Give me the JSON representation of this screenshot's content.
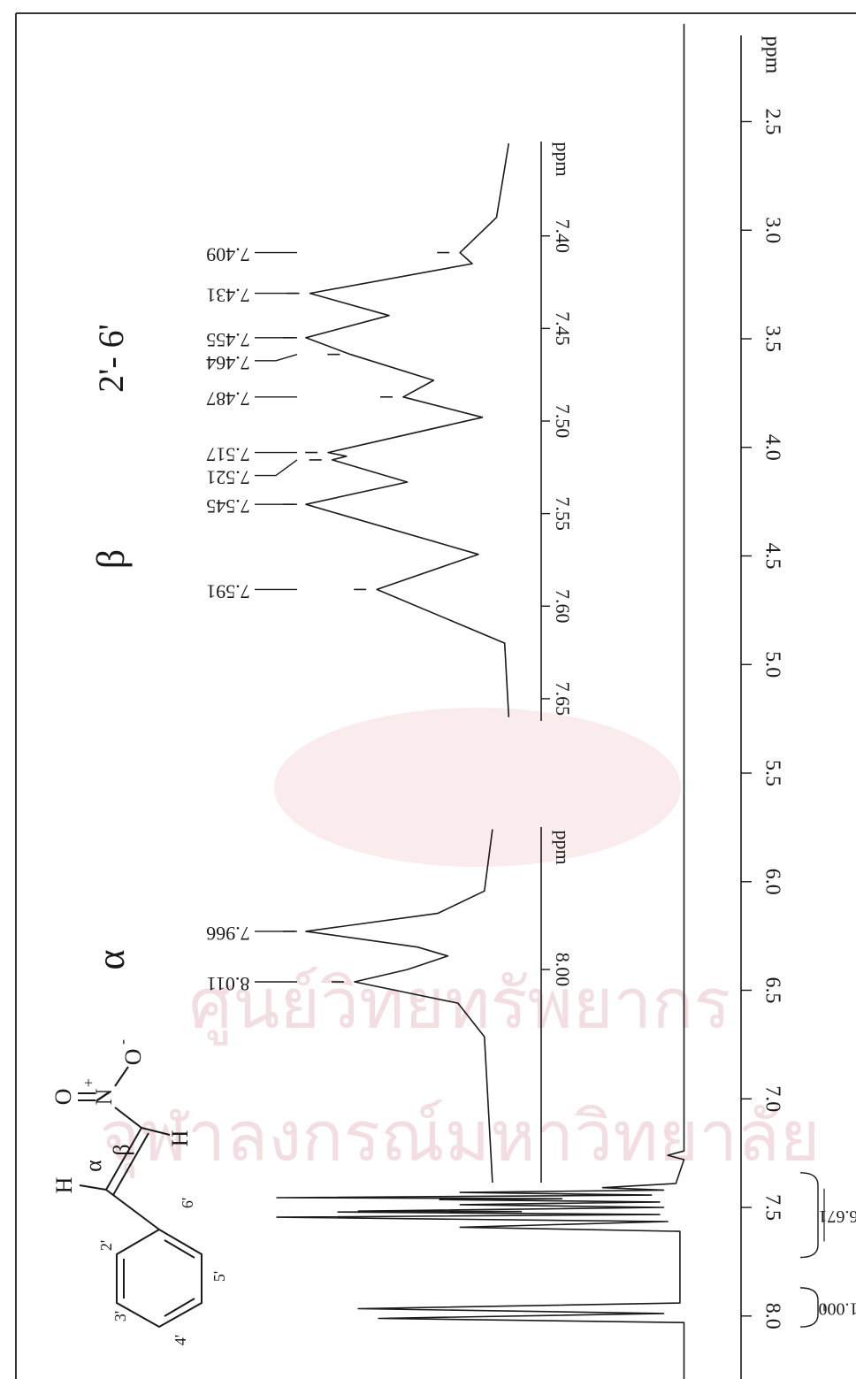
{
  "chart_data": [
    {
      "type": "line",
      "color": "#1a1a1a",
      "xlabel": "ppm",
      "xlim": [
        1.94,
        8.29
      ],
      "xticks": [
        2.5,
        {
          "value": 3,
          "label": "3.0"
        },
        3.5,
        {
          "value": 4,
          "label": "4.0"
        },
        4.5,
        {
          "value": 5,
          "label": "5.0"
        },
        5.5,
        {
          "value": 6,
          "label": "6.0"
        },
        6.5,
        {
          "value": 7,
          "label": "7.0"
        },
        7.5,
        {
          "value": 8,
          "label": "8.0"
        }
      ],
      "ylim": [
        -14,
        168
      ],
      "x": [
        2.05,
        7.24,
        7.26,
        7.28,
        7.39,
        7.409,
        7.42,
        7.431,
        7.443,
        7.455,
        7.46,
        7.464,
        7.475,
        7.487,
        7.5,
        7.517,
        7.519,
        7.521,
        7.533,
        7.545,
        7.565,
        7.591,
        7.61,
        7.94,
        7.966,
        7.988,
        8.011,
        8.03,
        8.29
      ],
      "values": [
        0,
        0,
        4,
        0,
        2,
        20,
        5,
        55,
        8,
        100,
        30,
        60,
        6,
        55,
        5,
        80,
        40,
        85,
        6,
        100,
        4,
        55,
        1,
        1,
        80,
        5,
        75,
        0,
        0
      ],
      "integrals": [
        {
          "range": [
            7.73,
            7.34
          ],
          "value": 6.671
        },
        {
          "range": [
            8.05,
            7.87
          ],
          "value": 1,
          "label": "1.000"
        }
      ]
    },
    {
      "type": "line",
      "color": "#1a1a1a",
      "title": "β",
      "subtitle": "2'- 6'",
      "xlabel": "ppm",
      "xlim": [
        7.349,
        7.662
      ],
      "xticks": [
        {
          "value": 7.4,
          "label": "7.40"
        },
        7.45,
        {
          "value": 7.5,
          "label": "7.50"
        },
        7.55,
        {
          "value": 7.6,
          "label": "7.60"
        },
        7.65
      ],
      "ylim": [
        -16,
        120
      ],
      "x": [
        7.35,
        7.39,
        7.409,
        7.415,
        7.431,
        7.443,
        7.455,
        7.464,
        7.478,
        7.487,
        7.498,
        7.517,
        7.519,
        7.521,
        7.533,
        7.545,
        7.572,
        7.591,
        7.62,
        7.66
      ],
      "values": [
        0,
        6,
        24,
        18,
        98,
        59,
        100,
        78,
        37,
        52,
        13,
        89,
        80,
        87,
        50,
        100,
        15,
        65,
        2,
        0
      ],
      "peak_labels": [
        7.409,
        7.431,
        7.455,
        7.464,
        7.487,
        7.517,
        7.521,
        7.545,
        7.591
      ]
    },
    {
      "type": "line",
      "color": "#1a1a1a",
      "title": "α",
      "xlabel": "ppm",
      "xlim": [
        7.873,
        8.19
      ],
      "xticks": [
        {
          "value": 8,
          "label": "8.00"
        }
      ],
      "ylim": [
        -16,
        120
      ],
      "x": [
        7.875,
        7.93,
        7.95,
        7.966,
        7.98,
        7.988,
        8.0,
        8.011,
        8.03,
        8.06,
        8.19
      ],
      "values": [
        8,
        12,
        35,
        100,
        45,
        30,
        50,
        76,
        25,
        12,
        8
      ],
      "peak_labels": [
        7.966,
        8.011
      ]
    }
  ],
  "structure": {
    "labels": [
      "H",
      "α",
      "β",
      "H",
      "O",
      "N",
      "+",
      "O",
      "-",
      "2'",
      "3'",
      "4'",
      "5'",
      "6'"
    ]
  },
  "watermark": [
    "ศูนย์วิทยทรัพยากร",
    "จุฬาลงกรณ์มหาวิทยาลัย"
  ]
}
